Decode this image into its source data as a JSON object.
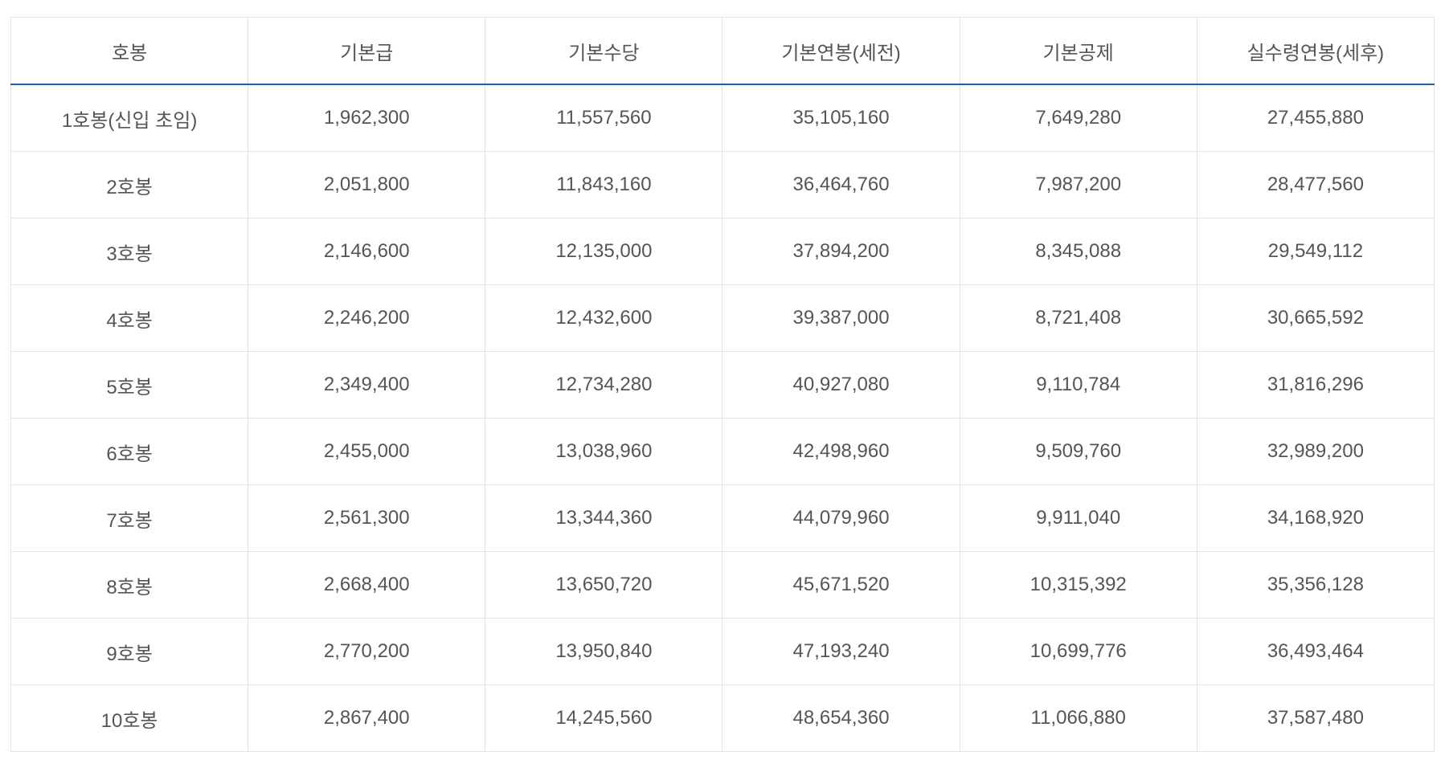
{
  "table": {
    "headers": [
      "호봉",
      "기본급",
      "기본수당",
      "기본연봉(세전)",
      "기본공제",
      "실수령연봉(세후)"
    ],
    "rows": [
      [
        "1호봉(신입 초임)",
        "1,962,300",
        "11,557,560",
        "35,105,160",
        "7,649,280",
        "27,455,880"
      ],
      [
        "2호봉",
        "2,051,800",
        "11,843,160",
        "36,464,760",
        "7,987,200",
        "28,477,560"
      ],
      [
        "3호봉",
        "2,146,600",
        "12,135,000",
        "37,894,200",
        "8,345,088",
        "29,549,112"
      ],
      [
        "4호봉",
        "2,246,200",
        "12,432,600",
        "39,387,000",
        "8,721,408",
        "30,665,592"
      ],
      [
        "5호봉",
        "2,349,400",
        "12,734,280",
        "40,927,080",
        "9,110,784",
        "31,816,296"
      ],
      [
        "6호봉",
        "2,455,000",
        "13,038,960",
        "42,498,960",
        "9,509,760",
        "32,989,200"
      ],
      [
        "7호봉",
        "2,561,300",
        "13,344,360",
        "44,079,960",
        "9,911,040",
        "34,168,920"
      ],
      [
        "8호봉",
        "2,668,400",
        "13,650,720",
        "45,671,520",
        "10,315,392",
        "35,356,128"
      ],
      [
        "9호봉",
        "2,770,200",
        "13,950,840",
        "47,193,240",
        "10,699,776",
        "36,493,464"
      ],
      [
        "10호봉",
        "2,867,400",
        "14,245,560",
        "48,654,360",
        "11,066,880",
        "37,587,480"
      ]
    ]
  },
  "colors": {
    "header_border": "#1f5fa8",
    "grid": "#e3e3e3",
    "text": "#555555"
  }
}
